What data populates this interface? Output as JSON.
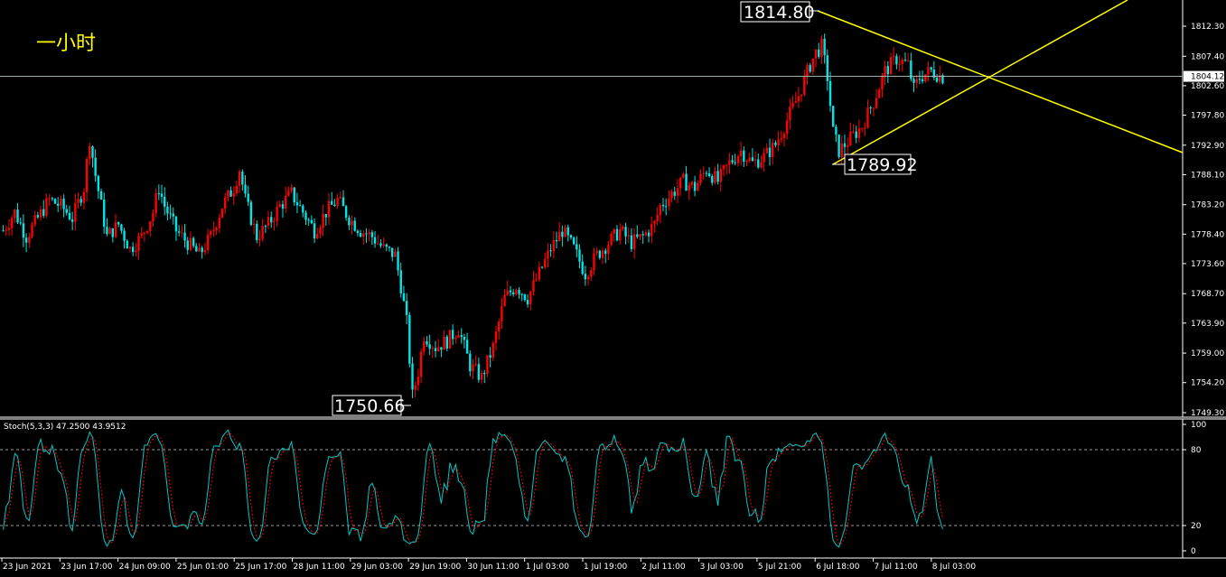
{
  "chart_data": [
    {
      "type": "candlestick",
      "title": "一小时",
      "current_price": "1804.12",
      "y_ticks": [
        "1812.30",
        "1807.40",
        "1802.60",
        "1797.80",
        "1792.90",
        "1788.10",
        "1783.20",
        "1778.40",
        "1773.60",
        "1768.70",
        "1763.90",
        "1759.00",
        "1754.20",
        "1749.30"
      ],
      "ylim": [
        1749.3,
        1812.3
      ],
      "x_ticks": [
        "23 Jun 2021",
        "23 Jun 17:00",
        "24 Jun 09:00",
        "25 Jun 01:00",
        "25 Jun 17:00",
        "28 Jun 11:00",
        "29 Jun 03:00",
        "29 Jun 19:00",
        "30 Jun 11:00",
        "1 Jul 03:00",
        "1 Jul 19:00",
        "2 Jul 11:00",
        "3 Jul 03:00",
        "5 Jul 21:00",
        "6 Jul 18:00",
        "7 Jul 11:00",
        "8 Jul 03:00"
      ],
      "annotations": [
        {
          "label": "1814.80",
          "value": 1814.8
        },
        {
          "label": "1789.92",
          "value": 1789.92
        },
        {
          "label": "1750.66",
          "value": 1750.66
        }
      ],
      "trendlines": "converging triangle (yellow)",
      "close_path": [
        [
          0,
          1779
        ],
        [
          4,
          1782
        ],
        [
          8,
          1778
        ],
        [
          12,
          1781
        ],
        [
          16,
          1784
        ],
        [
          20,
          1783
        ],
        [
          24,
          1781
        ],
        [
          28,
          1786
        ],
        [
          30,
          1794
        ],
        [
          32,
          1788
        ],
        [
          34,
          1783
        ],
        [
          36,
          1778
        ],
        [
          40,
          1780
        ],
        [
          44,
          1776
        ],
        [
          48,
          1778
        ],
        [
          52,
          1782
        ],
        [
          54,
          1786
        ],
        [
          56,
          1783
        ],
        [
          60,
          1779
        ],
        [
          64,
          1777
        ],
        [
          68,
          1775
        ],
        [
          72,
          1778
        ],
        [
          76,
          1783
        ],
        [
          80,
          1786
        ],
        [
          82,
          1789
        ],
        [
          84,
          1784
        ],
        [
          88,
          1778
        ],
        [
          92,
          1780
        ],
        [
          96,
          1783
        ],
        [
          100,
          1785
        ],
        [
          104,
          1782
        ],
        [
          108,
          1779
        ],
        [
          112,
          1782
        ],
        [
          116,
          1784
        ],
        [
          120,
          1781
        ],
        [
          124,
          1779
        ],
        [
          128,
          1778
        ],
        [
          132,
          1776
        ],
        [
          136,
          1775
        ],
        [
          138,
          1770
        ],
        [
          140,
          1764
        ],
        [
          142,
          1752
        ],
        [
          144,
          1756
        ],
        [
          146,
          1762
        ],
        [
          150,
          1760
        ],
        [
          154,
          1761
        ],
        [
          158,
          1763
        ],
        [
          160,
          1760
        ],
        [
          162,
          1757
        ],
        [
          166,
          1755
        ],
        [
          170,
          1760
        ],
        [
          174,
          1768
        ],
        [
          178,
          1770
        ],
        [
          182,
          1768
        ],
        [
          186,
          1772
        ],
        [
          190,
          1776
        ],
        [
          194,
          1779
        ],
        [
          198,
          1776
        ],
        [
          202,
          1772
        ],
        [
          206,
          1775
        ],
        [
          210,
          1777
        ],
        [
          214,
          1779
        ],
        [
          218,
          1777
        ],
        [
          222,
          1778
        ],
        [
          226,
          1780
        ],
        [
          228,
          1783
        ],
        [
          232,
          1785
        ],
        [
          236,
          1787
        ],
        [
          240,
          1786
        ],
        [
          244,
          1789
        ],
        [
          248,
          1787
        ],
        [
          252,
          1790
        ],
        [
          256,
          1792
        ],
        [
          260,
          1790
        ],
        [
          264,
          1791
        ],
        [
          268,
          1793
        ],
        [
          272,
          1797
        ],
        [
          276,
          1801
        ],
        [
          280,
          1806
        ],
        [
          282,
          1808
        ],
        [
          284,
          1809
        ],
        [
          286,
          1804
        ],
        [
          288,
          1795
        ],
        [
          290,
          1792
        ],
        [
          294,
          1794
        ],
        [
          298,
          1796
        ],
        [
          302,
          1800
        ],
        [
          306,
          1805
        ],
        [
          310,
          1807
        ],
        [
          314,
          1806
        ],
        [
          316,
          1802
        ],
        [
          318,
          1804
        ],
        [
          322,
          1805
        ],
        [
          326,
          1804
        ]
      ]
    },
    {
      "type": "line",
      "title": "Stoch(5,3,3) 47.2500 43.9512",
      "y_ticks": [
        "100",
        "80",
        "20",
        "0"
      ],
      "ylim": [
        0,
        100
      ],
      "levels": [
        80,
        20
      ],
      "series": [
        {
          "name": "main",
          "color": "#00c8c8"
        },
        {
          "name": "signal",
          "color": "#ff0000"
        }
      ],
      "last_values": [
        47.25,
        43.9512
      ]
    }
  ],
  "colors": {
    "up": "#ff0000",
    "down": "#00e5e5",
    "trend": "#ffff00",
    "bg": "#000000",
    "fg": "#ffffff"
  }
}
